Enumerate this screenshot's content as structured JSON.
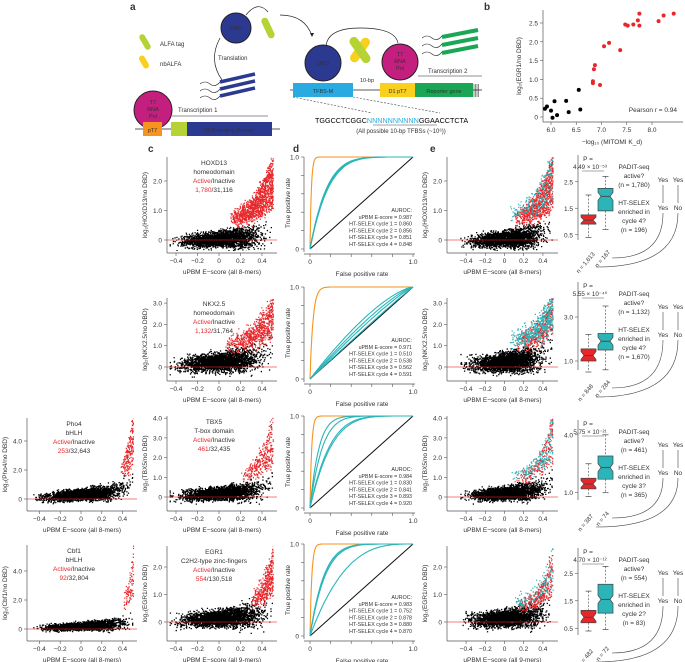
{
  "colors": {
    "active": "#e8272b",
    "teal": "#2bb5b8",
    "orange": "#f7931e",
    "navy": "#2b3990",
    "magenta": "#c41e7f",
    "lime": "#b5d334",
    "yellow": "#f9d01e",
    "cyan": "#29abe2",
    "green": "#1aa655",
    "black": "#000000"
  },
  "panel_labels": [
    "a",
    "b",
    "c",
    "d",
    "e"
  ],
  "panel_a": {
    "legend": [
      "ALFA tag",
      "nbALFA"
    ],
    "dbd": "DBD",
    "t7": [
      "T7",
      "RNA",
      "Pol"
    ],
    "translation": "Translation",
    "transcription1": "Transcription 1",
    "transcription2": "Transcription 2",
    "pt7": "pT7",
    "dna_binding_domain": "DNA binding domain",
    "tfbs_m": "TFBS-M",
    "spacer": "10-bp",
    "d1_pt7": "D1 pT7",
    "reporter": "Reporter gene",
    "seq_left": "TGGCCTCGGC",
    "seq_mid": "NNNNNNNNNN",
    "seq_right": "GGAACCTCTA",
    "seq_note": "(All possible 10-bp TFBSs (~10⁶))"
  },
  "chart_data": [
    {
      "id": "b",
      "type": "scatter",
      "xlabel": "−log₁₀ (MITOMI K_d)",
      "ylabel": "log₂(EGR1/no DBD)",
      "xticks": [
        "6.0",
        "6.5",
        "7.0",
        "7.5",
        "8.0"
      ],
      "yticks": [
        "0",
        "0.5",
        "1.0",
        "1.5",
        "2.0",
        "2.5"
      ],
      "annotation": "Pearson r = 0.94",
      "series": [
        {
          "color": "black",
          "points": [
            [
              5.88,
              0.22
            ],
            [
              5.92,
              0.28
            ],
            [
              6.0,
              0.17
            ],
            [
              6.03,
              -0.02
            ],
            [
              6.07,
              0.42
            ],
            [
              6.12,
              0.05
            ],
            [
              6.3,
              0.43
            ],
            [
              6.35,
              0.13
            ],
            [
              6.55,
              0.72
            ],
            [
              6.58,
              0.2
            ]
          ]
        },
        {
          "color": "red",
          "points": [
            [
              6.83,
              0.9
            ],
            [
              6.83,
              0.95
            ],
            [
              6.85,
              1.27
            ],
            [
              6.87,
              1.38
            ],
            [
              6.97,
              0.85
            ],
            [
              7.05,
              1.88
            ],
            [
              7.15,
              1.97
            ],
            [
              7.37,
              1.78
            ],
            [
              7.47,
              2.46
            ],
            [
              7.52,
              2.43
            ],
            [
              7.63,
              2.46
            ],
            [
              7.72,
              2.57
            ],
            [
              7.75,
              2.75
            ],
            [
              7.75,
              2.43
            ],
            [
              8.13,
              2.55
            ],
            [
              8.23,
              2.7
            ],
            [
              8.43,
              2.75
            ]
          ]
        }
      ]
    },
    {
      "id": "c",
      "type": "scatter",
      "active_label": "Active",
      "inactive_label": "/Inactive",
      "panels": [
        {
          "tf": "HOXD13",
          "family": "homeodomain",
          "active": "1,780",
          "inactive": "31,116",
          "ylabel": "log₂(HOXD13/no DBD)",
          "xlabel": "uPBM E−score (all 8-mers)",
          "yticks": [
            "0",
            "1.0",
            "2.0"
          ]
        },
        {
          "tf": "NKX2.5",
          "family": "homeodomain",
          "active": "1,132",
          "inactive": "31,764",
          "ylabel": "log₂(NKX2.5/no DBD)",
          "xlabel": "uPBM E−score (all 8-mers)",
          "yticks": [
            "0",
            "1.0",
            "2.0",
            "3.0"
          ]
        },
        {
          "tf": "Pho4",
          "family": "bHLH",
          "active": "253",
          "inactive": "32,643",
          "ylabel": "log₂(Pho4/no DBD)",
          "xlabel": "uPBM E−score (all 8-mers)",
          "yticks": [
            "0",
            "2.0",
            "4.0"
          ]
        },
        {
          "tf": "TBX5",
          "family": "T-box domain",
          "active": "461",
          "inactive": "32,435",
          "ylabel": "log₂(TBX5/no DBD)",
          "xlabel": "uPBM E−score (all 8-mers)",
          "yticks": [
            "0",
            "1.0",
            "2.0",
            "3.0",
            "4.0"
          ]
        },
        {
          "tf": "Cbf1",
          "family": "bHLH",
          "active": "92",
          "inactive": "32,804",
          "ylabel": "log₂(Cbf1/no DBD)",
          "xlabel": "uPBM E−score (all 8-mers)",
          "yticks": [
            "0",
            "2.0",
            "4.0"
          ]
        },
        {
          "tf": "EGR1",
          "family": "C2H2-type zinc-fingers",
          "active": "554",
          "inactive": "130,518",
          "ylabel": "log₂(EGR1/no DBD)",
          "xlabel": "uPBM E−score (all 9-mers)",
          "yticks": [
            "0",
            "1.0",
            "2.0"
          ]
        }
      ],
      "xticks": [
        "−0.4",
        "−0.2",
        "0",
        "0.2",
        "0.4"
      ]
    },
    {
      "id": "d",
      "type": "line",
      "xlabel": "False positive rate",
      "ylabel": "True positive rate",
      "xticks": [
        "0",
        "1.0"
      ],
      "yticks": [
        "0",
        "1.0"
      ],
      "legend_title": "AUROC:",
      "panels": [
        {
          "upbm": "uPBM E-score = 0.987",
          "selex": [
            "HT-SELEX cycle 1 = 0.860",
            "HT-SELEX cycle 2 = 0.856",
            "HT-SELEX cycle 3 = 0.851",
            "HT-SELEX cycle 4 = 0.848"
          ],
          "auc": [
            0.987,
            0.86,
            0.856,
            0.851,
            0.848
          ]
        },
        {
          "upbm": "uPBM E-score = 0.971",
          "selex": [
            "HT-SELEX cycle 1 = 0.510",
            "HT-SELEX cycle 2 = 0.538",
            "HT-SELEX cycle 3 = 0.562",
            "HT-SELEX cycle 4 = 0.591"
          ],
          "auc": [
            0.971,
            0.51,
            0.538,
            0.562,
            0.591
          ]
        },
        {
          "upbm": "uPBM E-score = 0.984",
          "selex": [
            "HT-SELEX cycle 1 = 0.830",
            "HT-SELEX cycle 2 = 0.841",
            "HT-SELEX cycle 3 = 0.893",
            "HT-SELEX cycle 4 = 0.920"
          ],
          "auc": [
            0.984,
            0.83,
            0.841,
            0.893,
            0.92
          ]
        },
        {
          "upbm": "uPBM E-score = 0.983",
          "selex": [
            "HT-SELEX cycle 1 = 0.752",
            "HT-SELEX cycle 2 = 0.878",
            "HT-SELEX cycle 3 = 0.880",
            "HT-SELEX cycle 4 = 0.870"
          ],
          "auc": [
            0.983,
            0.752,
            0.878,
            0.88,
            0.87
          ]
        }
      ]
    },
    {
      "id": "e",
      "type": "box",
      "padit_q": [
        "PADIT-seq",
        "active?"
      ],
      "selex_q": [
        "HT-SELEX",
        "enriched in"
      ],
      "yes": "Yes",
      "no": "No",
      "p_label": "P =",
      "panels": [
        {
          "p": "4.49 × 10⁻⁵³",
          "padit_n": "(n = 1,780)",
          "cycle": "cycle 4?",
          "selex_n": "(n = 196)",
          "n_red": "n = 1,613",
          "n_teal": "n = 167",
          "yticks": [
            "0.5",
            "1.5",
            "2.5"
          ],
          "ylabel": "log₂(HOXD13/no DBD)",
          "xlabel": "uPBM E−score (all 8-mers)",
          "red": {
            "min": 0.4,
            "q1": 0.9,
            "med": 1.05,
            "q3": 1.25,
            "max": 2.0
          },
          "teal": {
            "min": 0.7,
            "q1": 1.4,
            "med": 1.95,
            "q3": 2.25,
            "max": 2.7
          }
        },
        {
          "p": "5.55 × 10⁻⁴⁰",
          "padit_n": "(n = 1,132)",
          "cycle": "cycle 4?",
          "selex_n": "(n = 1,670)",
          "n_red": "n = 848",
          "n_teal": "n = 284",
          "yticks": [
            "1.0",
            "3.0"
          ],
          "ylabel": "log₂(NKX2.5/no DBD)",
          "xlabel": "uPBM E−score (all 8-mers)",
          "red": {
            "min": 0.5,
            "q1": 1.0,
            "med": 1.25,
            "q3": 1.55,
            "max": 2.2
          },
          "teal": {
            "min": 0.6,
            "q1": 1.5,
            "med": 1.9,
            "q3": 2.25,
            "max": 3.5
          }
        },
        {
          "p": "5.75 × 10⁻²¹",
          "padit_n": "(n = 461)",
          "cycle": "cycle 3?",
          "selex_n": "(n = 365)",
          "n_red": "n = 387",
          "n_teal": "n = 74",
          "yticks": [
            "1.0",
            "4.0"
          ],
          "ylabel": "log₂(TBX5/no DBD)",
          "xlabel": "uPBM E−score (all 8-mers)",
          "red": {
            "min": 0.8,
            "q1": 1.2,
            "med": 1.45,
            "q3": 1.75,
            "max": 2.5
          },
          "teal": {
            "min": 1.0,
            "q1": 1.7,
            "med": 2.3,
            "q3": 2.9,
            "max": 4.0
          }
        },
        {
          "p": "4.70 × 10⁻¹²",
          "padit_n": "(n = 554)",
          "cycle": "cycle 2?",
          "selex_n": "(n = 83)",
          "n_red": "n = 482",
          "n_teal": "n = 72",
          "yticks": [
            "0.5",
            "1.5",
            "2.5"
          ],
          "ylabel": "log₂(EGR1/no DBD)",
          "xlabel": "uPBM E−score (all 9-mers)",
          "red": {
            "min": 0.4,
            "q1": 0.7,
            "med": 0.9,
            "q3": 1.15,
            "max": 1.85
          },
          "teal": {
            "min": 0.45,
            "q1": 1.05,
            "med": 1.55,
            "q3": 2.1,
            "max": 2.75
          }
        }
      ]
    }
  ]
}
